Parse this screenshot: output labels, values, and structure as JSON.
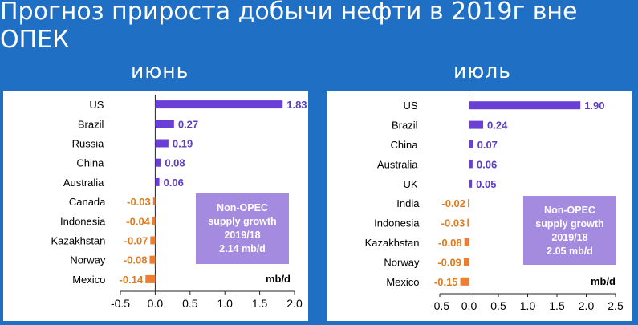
{
  "header": {
    "title": "Прогноз прироста добычи нефти в 2019г вне ОПЕК",
    "left_label": "июнь",
    "right_label": "июль"
  },
  "colors": {
    "background": "#1f6fc5",
    "positive_bar": "#6a3fd8",
    "negative_bar": "#ed7d31",
    "positive_label": "#5b3cc4",
    "negative_label": "#e07b20",
    "note_box": "#a58be0"
  },
  "chart_data": [
    {
      "type": "bar",
      "orientation": "horizontal",
      "categories": [
        "US",
        "Brazil",
        "Russia",
        "China",
        "Australia",
        "Canada",
        "Indonesia",
        "Kazakhstan",
        "Norway",
        "Mexico"
      ],
      "values": [
        1.83,
        0.27,
        0.19,
        0.08,
        0.06,
        -0.03,
        -0.04,
        -0.07,
        -0.08,
        -0.14
      ],
      "value_labels": [
        "1.83",
        "0.27",
        "0.19",
        "0.08",
        "0.06",
        "-0.03",
        "-0.04",
        "-0.07",
        "-0.08",
        "-0.14"
      ],
      "xlim": [
        -0.5,
        2.0
      ],
      "xticks": [
        "-0.5",
        "0.0",
        "0.5",
        "1.0",
        "1.5",
        "2.0"
      ],
      "unit_label": "mb/d",
      "note": [
        "Non-OPEC",
        "supply growth",
        "2019/18",
        "2.14 mb/d"
      ]
    },
    {
      "type": "bar",
      "orientation": "horizontal",
      "categories": [
        "US",
        "Brazil",
        "China",
        "Australia",
        "UK",
        "India",
        "Indonesia",
        "Kazakhstan",
        "Norway",
        "Mexico"
      ],
      "values": [
        1.9,
        0.24,
        0.07,
        0.06,
        0.05,
        -0.02,
        -0.03,
        -0.08,
        -0.09,
        -0.15
      ],
      "value_labels": [
        "1.90",
        "0.24",
        "0.07",
        "0.06",
        "0.05",
        "-0.02",
        "-0.03",
        "-0.08",
        "-0.09",
        "-0.15"
      ],
      "xlim": [
        -0.5,
        2.5
      ],
      "xticks": [
        "-0.5",
        "0.0",
        "0.5",
        "1.0",
        "1.5",
        "2.0",
        "2.5"
      ],
      "unit_label": "mb/d",
      "note": [
        "Non-OPEC",
        "supply growth",
        "2019/18",
        "2.05 mb/d"
      ]
    }
  ]
}
